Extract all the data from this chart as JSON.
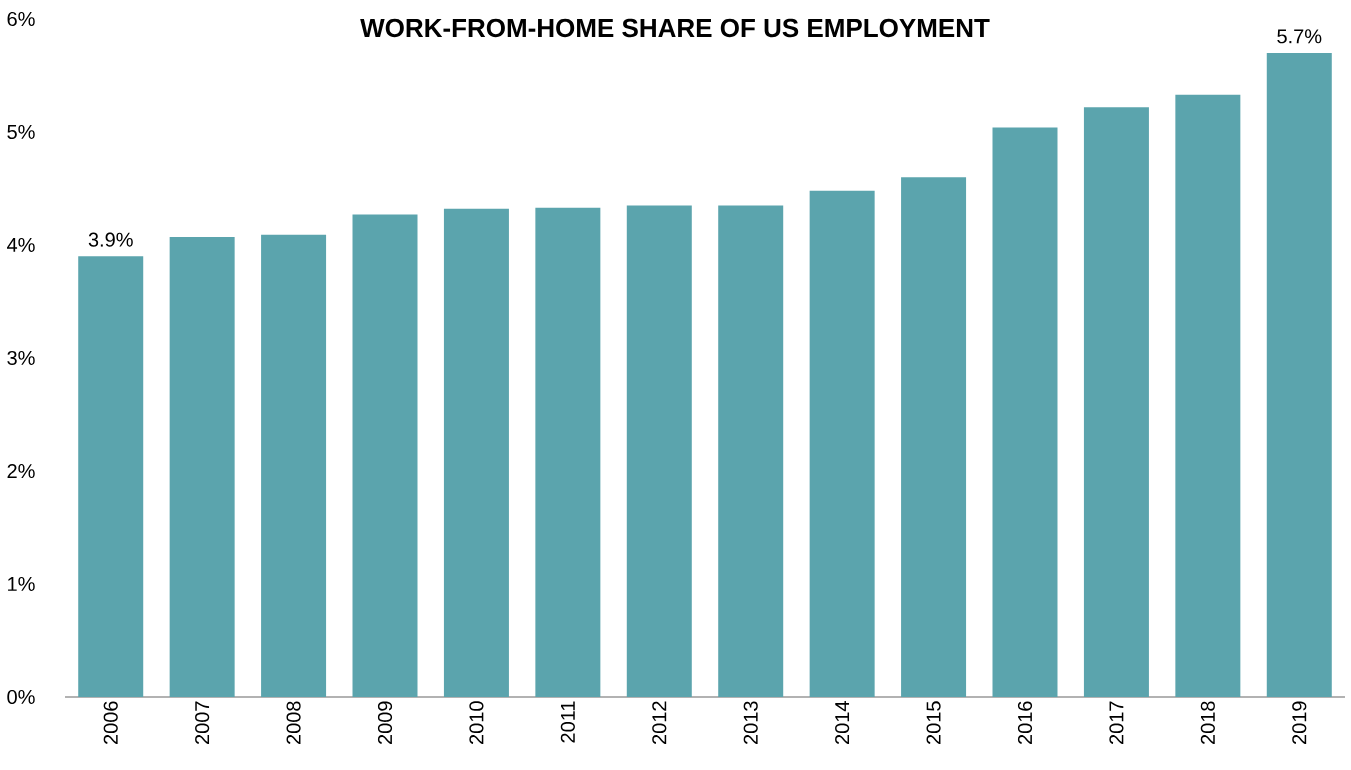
{
  "chart_data": {
    "type": "bar",
    "title": "WORK-FROM-HOME SHARE OF US EMPLOYMENT",
    "categories": [
      "2006",
      "2007",
      "2008",
      "2009",
      "2010",
      "2011",
      "2012",
      "2013",
      "2014",
      "2015",
      "2016",
      "2017",
      "2018",
      "2019"
    ],
    "values": [
      3.9,
      4.07,
      4.09,
      4.27,
      4.32,
      4.33,
      4.35,
      4.35,
      4.48,
      4.6,
      5.04,
      5.22,
      5.33,
      5.7
    ],
    "value_labels": [
      "3.9%",
      null,
      null,
      null,
      null,
      null,
      null,
      null,
      null,
      null,
      null,
      null,
      null,
      "5.7%"
    ],
    "color": "#5ba4ad",
    "ylim": [
      0,
      6
    ],
    "yticks": [
      {
        "value": 0,
        "label": "0%"
      },
      {
        "value": 1,
        "label": "1%"
      },
      {
        "value": 2,
        "label": "2%"
      },
      {
        "value": 3,
        "label": "3%"
      },
      {
        "value": 4,
        "label": "4%"
      },
      {
        "value": 5,
        "label": "5%"
      },
      {
        "value": 6,
        "label": "6%"
      }
    ],
    "grid": false
  }
}
